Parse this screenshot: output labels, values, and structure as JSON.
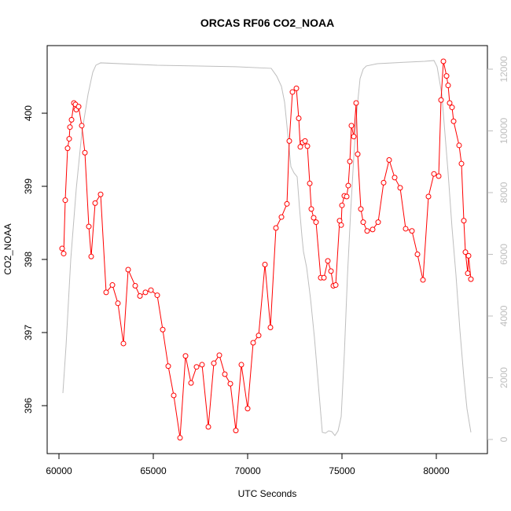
{
  "chart_data": {
    "type": "line",
    "title": "ORCAS RF06 CO2_NOAA",
    "x_label": "UTC Seconds",
    "y_label": "CO2_NOAA",
    "xlim": [
      59375,
      82708
    ],
    "xticks": [
      60000,
      65000,
      70000,
      75000,
      80000
    ],
    "ylim": [
      395.344,
      400.925
    ],
    "yticks": [
      396,
      397,
      398,
      399,
      400
    ],
    "y2lim": [
      -459,
      12764
    ],
    "y2ticks": [
      0,
      2000,
      4000,
      6000,
      8000,
      10000,
      12000
    ],
    "y2color": "#bebebe",
    "series": [
      {
        "color": "#ff0000",
        "marker": "circle",
        "x": [
          60167,
          60250,
          60333,
          60458,
          60542,
          60583,
          60667,
          60792,
          60875,
          60917,
          61042,
          61208,
          61375,
          61583,
          61708,
          61917,
          62208,
          62500,
          62833,
          63125,
          63417,
          63667,
          64042,
          64292,
          64583,
          64875,
          65208,
          65500,
          65792,
          66083,
          66417,
          66708,
          67000,
          67292,
          67583,
          67917,
          68208,
          68500,
          68792,
          69083,
          69375,
          69667,
          70000,
          70292,
          70583,
          70917,
          71208,
          71500,
          71792,
          72083,
          72208,
          72375,
          72583,
          72708,
          72792,
          72917,
          73042,
          73167,
          73292,
          73375,
          73500,
          73625,
          73875,
          74042,
          74250,
          74417,
          74542,
          74667,
          74875,
          74958,
          75000,
          75125,
          75250,
          75333,
          75417,
          75500,
          75625,
          75750,
          75833,
          76000,
          76125,
          76333,
          76625,
          76917,
          77208,
          77500,
          77792,
          78083,
          78375,
          78708,
          79000,
          79292,
          79583,
          79875,
          80125,
          80250,
          80375,
          80542,
          80625,
          80708,
          80833,
          80917,
          81208,
          81333,
          81458,
          81542,
          81667,
          81708,
          81833
        ],
        "values": [
          398.15,
          398.08,
          398.81,
          399.52,
          399.65,
          399.81,
          399.91,
          400.14,
          400.12,
          400.05,
          400.09,
          399.83,
          399.46,
          398.45,
          398.04,
          398.77,
          398.89,
          397.55,
          397.65,
          397.4,
          396.85,
          397.86,
          397.64,
          397.5,
          397.55,
          397.58,
          397.51,
          397.04,
          396.54,
          396.14,
          395.56,
          396.68,
          396.31,
          396.53,
          396.56,
          395.71,
          396.58,
          396.69,
          396.43,
          396.3,
          395.66,
          396.56,
          395.96,
          396.86,
          396.96,
          397.93,
          397.07,
          398.43,
          398.58,
          398.76,
          399.62,
          400.29,
          400.34,
          399.93,
          399.54,
          399.6,
          399.62,
          399.55,
          399.04,
          398.69,
          398.57,
          398.51,
          397.75,
          397.75,
          397.98,
          397.84,
          397.64,
          397.65,
          398.53,
          398.47,
          398.74,
          398.87,
          398.86,
          399.01,
          399.34,
          399.83,
          399.68,
          400.14,
          399.44,
          398.69,
          398.51,
          398.39,
          398.41,
          398.51,
          399.05,
          399.36,
          399.12,
          398.98,
          398.42,
          398.39,
          398.07,
          397.72,
          398.86,
          399.17,
          399.14,
          400.18,
          400.71,
          400.51,
          400.38,
          400.14,
          400.08,
          399.89,
          399.56,
          399.31,
          398.53,
          398.1,
          397.81,
          398.05,
          397.73
        ]
      },
      {
        "color": "#bebebe",
        "axis": "y2",
        "x": [
          60208,
          60375,
          60625,
          60917,
          61208,
          61542,
          61792,
          61958,
          62208,
          65208,
          69375,
          71250,
          71542,
          71792,
          71958,
          72125,
          72292,
          72458,
          72625,
          72750,
          72875,
          72958,
          73125,
          73333,
          73542,
          73750,
          73958,
          74125,
          74292,
          74458,
          74625,
          74792,
          74958,
          75125,
          75292,
          75458,
          75625,
          75792,
          75958,
          76125,
          76292,
          76875,
          79375,
          79875,
          80042,
          80292,
          80458,
          80625,
          80833,
          81042,
          81250,
          81458,
          81625,
          81833
        ],
        "values": [
          1503,
          3032,
          5835,
          8128,
          9912,
          11186,
          11899,
          12128,
          12205,
          12128,
          12078,
          12027,
          11772,
          11441,
          10931,
          9912,
          8842,
          8638,
          8510,
          7491,
          6599,
          6090,
          5580,
          4561,
          3287,
          1758,
          229,
          204,
          280,
          255,
          127,
          280,
          739,
          2777,
          5325,
          7364,
          9147,
          10676,
          11695,
          12001,
          12103,
          12179,
          12256,
          12281,
          12078,
          11186,
          9912,
          8638,
          6854,
          5325,
          3542,
          2013,
          994,
          229
        ]
      }
    ]
  }
}
